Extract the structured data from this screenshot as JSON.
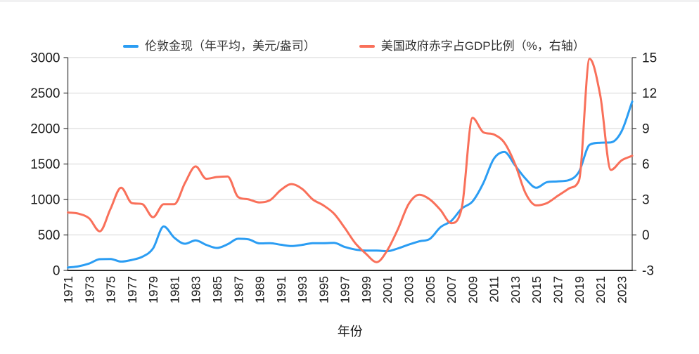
{
  "colors": {
    "gold_line": "#2b9df3",
    "deficit_line": "#f9705a",
    "grid": "#d4d4d4",
    "frame": "#444444",
    "axis_bottom": "#2a2a2a",
    "text": "#1a1a1a",
    "legend_text": "#333333"
  },
  "chart_data": {
    "type": "line",
    "title": "",
    "smooth": true,
    "grid": true,
    "legend_position": "top-center",
    "x": [
      1971,
      1972,
      1973,
      1974,
      1975,
      1976,
      1977,
      1978,
      1979,
      1980,
      1981,
      1982,
      1983,
      1984,
      1985,
      1986,
      1987,
      1988,
      1989,
      1990,
      1991,
      1992,
      1993,
      1994,
      1995,
      1996,
      1997,
      1998,
      1999,
      2000,
      2001,
      2002,
      2003,
      2004,
      2005,
      2006,
      2007,
      2008,
      2009,
      2010,
      2011,
      2012,
      2013,
      2014,
      2015,
      2016,
      2017,
      2018,
      2019,
      2020,
      2021,
      2022,
      2023,
      2024
    ],
    "x_axis": {
      "label": "年份",
      "tick_rotation": -90,
      "tick_labels": [
        "1971",
        "1973",
        "1975",
        "1977",
        "1979",
        "1981",
        "1983",
        "1985",
        "1987",
        "1989",
        "1991",
        "1993",
        "1995",
        "1997",
        "1999",
        "2001",
        "2003",
        "2005",
        "2007",
        "2009",
        "2011",
        "2013",
        "2015",
        "2017",
        "2019",
        "2021",
        "2023"
      ]
    },
    "left_axis": {
      "range": [
        0,
        3000
      ],
      "ticks": [
        0,
        500,
        1000,
        1500,
        2000,
        2500,
        3000
      ]
    },
    "right_axis": {
      "range": [
        -3,
        15
      ],
      "ticks": [
        -3,
        0,
        3,
        6,
        9,
        12,
        15
      ]
    },
    "series": [
      {
        "name": "伦敦金现（年平均，美元/盎司）",
        "axis": "left",
        "color": "#2b9df3",
        "values": [
          41,
          58,
          97,
          158,
          161,
          125,
          148,
          193,
          310,
          620,
          460,
          376,
          424,
          360,
          317,
          368,
          447,
          437,
          381,
          384,
          362,
          344,
          360,
          384,
          384,
          388,
          331,
          294,
          279,
          279,
          271,
          310,
          363,
          410,
          445,
          610,
          697,
          872,
          972,
          1225,
          1572,
          1669,
          1480,
          1290,
          1165,
          1245,
          1255,
          1270,
          1390,
          1770,
          1800,
          1805,
          1960,
          2380
        ]
      },
      {
        "name": "美国政府赤字占GDP比例（%，右轴）",
        "axis": "right",
        "color": "#f9705a",
        "values": [
          1.9,
          1.8,
          1.4,
          0.3,
          2.2,
          4.0,
          2.7,
          2.6,
          1.5,
          2.6,
          2.6,
          4.4,
          5.8,
          4.75,
          4.9,
          4.95,
          3.2,
          3.0,
          2.75,
          2.95,
          3.8,
          4.3,
          3.9,
          3.0,
          2.5,
          1.8,
          0.6,
          -0.7,
          -1.6,
          -2.3,
          -1.3,
          0.5,
          2.6,
          3.4,
          3.0,
          2.1,
          1.0,
          2.3,
          9.9,
          8.7,
          8.5,
          7.8,
          6.0,
          3.5,
          2.5,
          2.7,
          3.3,
          3.9,
          4.6,
          14.9,
          11.8,
          5.5,
          6.3,
          6.7
        ]
      }
    ]
  }
}
